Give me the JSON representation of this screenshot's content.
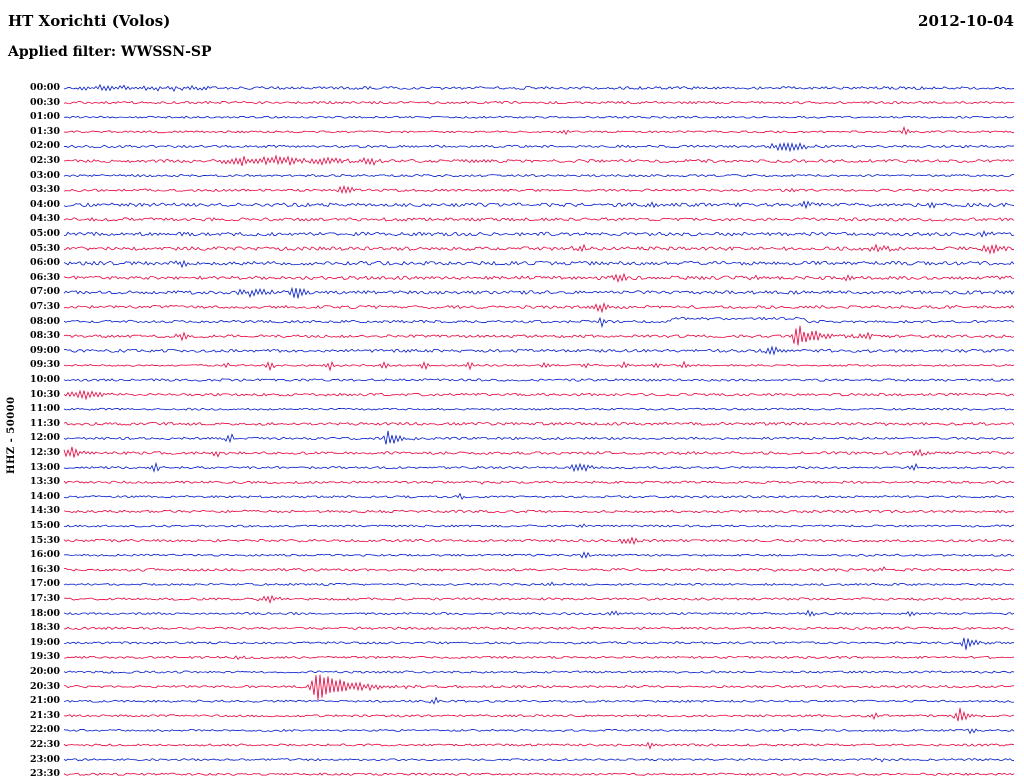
{
  "header": {
    "station": "HT Xorichti (Volos)",
    "date": "2012-10-04",
    "filter_label": "Applied filter: WWSSN-SP"
  },
  "y_axis_label": "HHZ - 50000",
  "colors": {
    "trace_blue": "#0018cc",
    "trace_red": "#e8003c",
    "text": "#000000",
    "background": "#ffffff"
  },
  "chart_data": {
    "type": "line",
    "subtype": "helicorder-seismogram",
    "title": "HT Xorichti (Volos)",
    "date": "2012-10-04",
    "filter": "WWSSN-SP",
    "channel_scale": "HHZ - 50000",
    "minutes_per_row": 30,
    "x_range_minutes": [
      0,
      30
    ],
    "legend": "alternating blue/red half-hour traces, 48 rows 00:00-23:30",
    "rows": [
      {
        "time": "00:00",
        "color": "blue",
        "noise": 1.4,
        "events": [
          {
            "x": 0.05,
            "amp": 2.2,
            "w": 0.03
          },
          {
            "x": 0.12,
            "amp": 1.8,
            "w": 0.02
          }
        ]
      },
      {
        "time": "00:30",
        "color": "red",
        "noise": 1.2,
        "events": []
      },
      {
        "time": "01:00",
        "color": "blue",
        "noise": 1.0,
        "events": []
      },
      {
        "time": "01:30",
        "color": "red",
        "noise": 1.0,
        "events": [
          {
            "x": 0.527,
            "amp": 3,
            "w": 0.004
          },
          {
            "x": 0.885,
            "amp": 5,
            "w": 0.003
          }
        ]
      },
      {
        "time": "02:00",
        "color": "blue",
        "noise": 1.2,
        "events": [
          {
            "x": 0.764,
            "amp": 5.5,
            "w": 0.012
          }
        ]
      },
      {
        "time": "02:30",
        "color": "red",
        "noise": 1.5,
        "events": [
          {
            "x": 0.185,
            "amp": 3.5,
            "w": 0.012
          },
          {
            "x": 0.225,
            "amp": 4.5,
            "w": 0.018
          },
          {
            "x": 0.28,
            "amp": 3.5,
            "w": 0.012
          },
          {
            "x": 0.322,
            "amp": 4,
            "w": 0.006
          }
        ]
      },
      {
        "time": "03:00",
        "color": "blue",
        "noise": 1.1,
        "events": []
      },
      {
        "time": "03:30",
        "color": "red",
        "noise": 1.2,
        "events": [
          {
            "x": 0.296,
            "amp": 3.8,
            "w": 0.006
          },
          {
            "x": 0.77,
            "amp": 2.2,
            "w": 0.004
          }
        ]
      },
      {
        "time": "04:00",
        "color": "blue",
        "noise": 1.8,
        "events": [
          {
            "x": 0.62,
            "amp": 3,
            "w": 0.004
          },
          {
            "x": 0.78,
            "amp": 3,
            "w": 0.004
          },
          {
            "x": 0.915,
            "amp": 3.5,
            "w": 0.004
          }
        ]
      },
      {
        "time": "04:30",
        "color": "red",
        "noise": 1.6,
        "events": [
          {
            "x": 0.47,
            "amp": 2.5,
            "w": 0.004
          }
        ]
      },
      {
        "time": "05:00",
        "color": "blue",
        "noise": 1.8,
        "events": [
          {
            "x": 0.97,
            "amp": 3,
            "w": 0.004
          }
        ]
      },
      {
        "time": "05:30",
        "color": "red",
        "noise": 1.8,
        "events": [
          {
            "x": 0.545,
            "amp": 3,
            "w": 0.006
          },
          {
            "x": 0.86,
            "amp": 3.5,
            "w": 0.008
          },
          {
            "x": 0.975,
            "amp": 4,
            "w": 0.008
          }
        ]
      },
      {
        "time": "06:00",
        "color": "blue",
        "noise": 1.8,
        "events": [
          {
            "x": 0.125,
            "amp": 3,
            "w": 0.005
          }
        ]
      },
      {
        "time": "06:30",
        "color": "red",
        "noise": 1.7,
        "events": [
          {
            "x": 0.585,
            "amp": 4,
            "w": 0.005
          },
          {
            "x": 0.73,
            "amp": 3,
            "w": 0.004
          },
          {
            "x": 0.825,
            "amp": 3.5,
            "w": 0.004
          }
        ]
      },
      {
        "time": "07:00",
        "color": "blue",
        "noise": 1.7,
        "events": [
          {
            "x": 0.2,
            "amp": 4,
            "w": 0.01
          },
          {
            "x": 0.245,
            "amp": 6.5,
            "w": 0.006
          }
        ]
      },
      {
        "time": "07:30",
        "color": "red",
        "noise": 1.5,
        "events": [
          {
            "x": 0.565,
            "amp": 4,
            "w": 0.004
          }
        ]
      },
      {
        "time": "08:00",
        "color": "blue",
        "noise": 1.3,
        "events": [
          {
            "x": 0.565,
            "amp": 5,
            "w": 0.002
          },
          {
            "type": "step",
            "x0": 0.64,
            "x1": 0.78,
            "offset": -3
          }
        ]
      },
      {
        "time": "08:30",
        "color": "red",
        "noise": 1.4,
        "events": [
          {
            "x": 0.127,
            "amp": 3.5,
            "w": 0.006
          },
          {
            "type": "quake",
            "x": 0.772,
            "amp": 13,
            "attack": 0.004,
            "decay": 0.018
          },
          {
            "x": 0.845,
            "amp": 4,
            "w": 0.004
          }
        ]
      },
      {
        "time": "09:00",
        "color": "blue",
        "noise": 1.5,
        "events": [
          {
            "x": 0.745,
            "amp": 5,
            "w": 0.004
          }
        ]
      },
      {
        "time": "09:30",
        "color": "red",
        "noise": 0.9,
        "events": [
          {
            "x": 0.17,
            "amp": 3.5,
            "w": 0.003
          },
          {
            "x": 0.217,
            "amp": 4,
            "w": 0.003
          },
          {
            "x": 0.28,
            "amp": 5,
            "w": 0.003
          },
          {
            "x": 0.338,
            "amp": 4.5,
            "w": 0.003
          },
          {
            "x": 0.38,
            "amp": 3.5,
            "w": 0.003
          },
          {
            "x": 0.427,
            "amp": 4.5,
            "w": 0.003
          },
          {
            "x": 0.506,
            "amp": 3.5,
            "w": 0.003
          },
          {
            "x": 0.548,
            "amp": 3.5,
            "w": 0.003
          },
          {
            "x": 0.59,
            "amp": 4,
            "w": 0.003
          },
          {
            "x": 0.622,
            "amp": 3,
            "w": 0.003
          },
          {
            "x": 0.654,
            "amp": 3.5,
            "w": 0.003
          }
        ]
      },
      {
        "time": "10:00",
        "color": "blue",
        "noise": 1.2,
        "events": []
      },
      {
        "time": "10:30",
        "color": "red",
        "noise": 1.3,
        "events": [
          {
            "x": 0.022,
            "amp": 4.5,
            "w": 0.012
          }
        ]
      },
      {
        "time": "11:00",
        "color": "blue",
        "noise": 1.0,
        "events": []
      },
      {
        "time": "11:30",
        "color": "red",
        "noise": 1.4,
        "events": [
          {
            "x": 0.185,
            "amp": 2.2,
            "w": 0.004
          },
          {
            "x": 0.86,
            "amp": 2.5,
            "w": 0.004
          }
        ]
      },
      {
        "time": "12:00",
        "color": "blue",
        "noise": 1.2,
        "events": [
          {
            "x": 0.175,
            "amp": 4.5,
            "w": 0.003
          },
          {
            "type": "quake",
            "x": 0.341,
            "amp": 7.5,
            "attack": 0.003,
            "decay": 0.01
          }
        ]
      },
      {
        "time": "12:30",
        "color": "red",
        "noise": 1.4,
        "events": [
          {
            "x": 0.008,
            "amp": 5,
            "w": 0.008
          },
          {
            "x": 0.16,
            "amp": 3.5,
            "w": 0.004
          },
          {
            "x": 0.9,
            "amp": 3,
            "w": 0.004
          }
        ]
      },
      {
        "time": "13:00",
        "color": "blue",
        "noise": 1.1,
        "events": [
          {
            "x": 0.096,
            "amp": 4.5,
            "w": 0.003
          },
          {
            "x": 0.543,
            "amp": 5,
            "w": 0.007
          },
          {
            "x": 0.895,
            "amp": 3,
            "w": 0.004
          }
        ]
      },
      {
        "time": "13:30",
        "color": "red",
        "noise": 1.2,
        "events": [
          {
            "x": 0.44,
            "amp": 2,
            "w": 0.004
          }
        ]
      },
      {
        "time": "14:00",
        "color": "blue",
        "noise": 1.1,
        "events": [
          {
            "x": 0.417,
            "amp": 3.8,
            "w": 0.003
          }
        ]
      },
      {
        "time": "14:30",
        "color": "red",
        "noise": 1.3,
        "events": []
      },
      {
        "time": "15:00",
        "color": "blue",
        "noise": 1.0,
        "events": [
          {
            "x": 0.545,
            "amp": 2.5,
            "w": 0.003
          }
        ]
      },
      {
        "time": "15:30",
        "color": "red",
        "noise": 1.3,
        "events": [
          {
            "x": 0.595,
            "amp": 3.5,
            "w": 0.006
          }
        ]
      },
      {
        "time": "16:00",
        "color": "blue",
        "noise": 1.0,
        "events": [
          {
            "x": 0.548,
            "amp": 4.2,
            "w": 0.003
          }
        ]
      },
      {
        "time": "16:30",
        "color": "red",
        "noise": 1.3,
        "events": [
          {
            "x": 0.86,
            "amp": 2.5,
            "w": 0.004
          }
        ]
      },
      {
        "time": "17:00",
        "color": "blue",
        "noise": 1.0,
        "events": [
          {
            "x": 0.515,
            "amp": 2.5,
            "w": 0.003
          }
        ]
      },
      {
        "time": "17:30",
        "color": "red",
        "noise": 1.2,
        "events": [
          {
            "x": 0.215,
            "amp": 3,
            "w": 0.008
          },
          {
            "x": 0.89,
            "amp": 2.5,
            "w": 0.004
          }
        ]
      },
      {
        "time": "18:00",
        "color": "blue",
        "noise": 1.1,
        "events": [
          {
            "x": 0.58,
            "amp": 3,
            "w": 0.004
          },
          {
            "x": 0.785,
            "amp": 3.5,
            "w": 0.004
          },
          {
            "x": 0.89,
            "amp": 3,
            "w": 0.004
          }
        ]
      },
      {
        "time": "18:30",
        "color": "red",
        "noise": 1.2,
        "events": []
      },
      {
        "time": "19:00",
        "color": "blue",
        "noise": 1.1,
        "events": [
          {
            "type": "quake",
            "x": 0.949,
            "amp": 9,
            "attack": 0.003,
            "decay": 0.008
          }
        ]
      },
      {
        "time": "19:30",
        "color": "red",
        "noise": 1.1,
        "events": [
          {
            "x": 0.185,
            "amp": 2,
            "w": 0.004
          }
        ]
      },
      {
        "time": "20:00",
        "color": "blue",
        "noise": 1.1,
        "events": []
      },
      {
        "time": "20:30",
        "color": "red",
        "noise": 1.2,
        "events": [
          {
            "type": "quake",
            "x": 0.266,
            "amp": 14,
            "attack": 0.005,
            "decay": 0.035
          }
        ]
      },
      {
        "time": "21:00",
        "color": "blue",
        "noise": 1.1,
        "events": [
          {
            "x": 0.39,
            "amp": 4,
            "w": 0.003
          }
        ]
      },
      {
        "time": "21:30",
        "color": "red",
        "noise": 1.1,
        "events": [
          {
            "x": 0.855,
            "amp": 3,
            "w": 0.003
          },
          {
            "type": "quake",
            "x": 0.944,
            "amp": 8,
            "attack": 0.004,
            "decay": 0.008
          }
        ]
      },
      {
        "time": "22:00",
        "color": "blue",
        "noise": 1.0,
        "events": [
          {
            "x": 0.955,
            "amp": 3.5,
            "w": 0.003
          }
        ]
      },
      {
        "time": "22:30",
        "color": "red",
        "noise": 1.1,
        "events": [
          {
            "x": 0.617,
            "amp": 4.2,
            "w": 0.003
          }
        ]
      },
      {
        "time": "23:00",
        "color": "blue",
        "noise": 1.0,
        "events": [
          {
            "x": 0.86,
            "amp": 2.5,
            "w": 0.003
          }
        ]
      },
      {
        "time": "23:30",
        "color": "red",
        "noise": 1.1,
        "events": []
      }
    ]
  }
}
